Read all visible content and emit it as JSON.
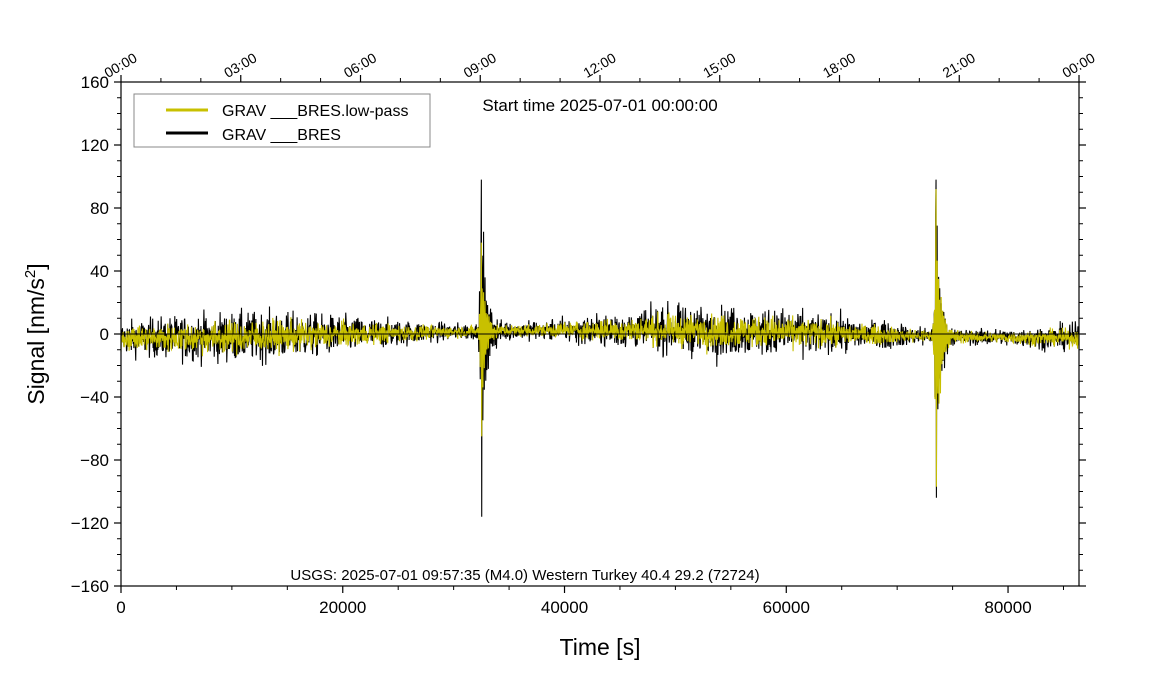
{
  "chart_data": {
    "type": "line",
    "title": "",
    "start_time_label": "Start time 2025-07-01 00:00:00",
    "annotation": "USGS: 2025-07-01 09:57:35 (M4.0) Western Turkey 40.4 29.2 (72724)",
    "xlabel": "Time [s]",
    "ylabel": "Signal [nm/s",
    "ylabel_sup": "2",
    "ylabel_close": "]",
    "xlim": [
      0,
      86400
    ],
    "ylim": [
      -160,
      160
    ],
    "x_ticks": [
      0,
      20000,
      40000,
      60000,
      80000
    ],
    "x_tick_labels": [
      "0",
      "20000",
      "40000",
      "60000",
      "80000"
    ],
    "y_ticks": [
      -160,
      -120,
      -80,
      -40,
      0,
      40,
      80,
      120,
      160
    ],
    "y_tick_labels": [
      "−160",
      "−120",
      "−80",
      "−40",
      "0",
      "40",
      "80",
      "120",
      "160"
    ],
    "top_axis_ticks": [
      0,
      10800,
      21600,
      32400,
      43200,
      54000,
      64800,
      75600,
      86400
    ],
    "top_axis_labels": [
      "00:00",
      "03:00",
      "06:00",
      "09:00",
      "12:00",
      "15:00",
      "18:00",
      "21:00",
      "00:00"
    ],
    "legend_position": "top-left",
    "grid": false,
    "series": [
      {
        "name": "GRAV ___BRES.low-pass",
        "color": "#c8c000",
        "noise_amplitude": 6,
        "events": [
          {
            "x": 32500,
            "max": 58,
            "min": -65
          },
          {
            "x": 73500,
            "max": 92,
            "min": -97
          }
        ]
      },
      {
        "name": "GRAV ___BRES",
        "color": "#000000",
        "noise_amplitude": 9,
        "events": [
          {
            "x": 32500,
            "max": 98,
            "min": -116
          },
          {
            "x": 73500,
            "max": 98,
            "min": -104
          }
        ]
      }
    ]
  }
}
